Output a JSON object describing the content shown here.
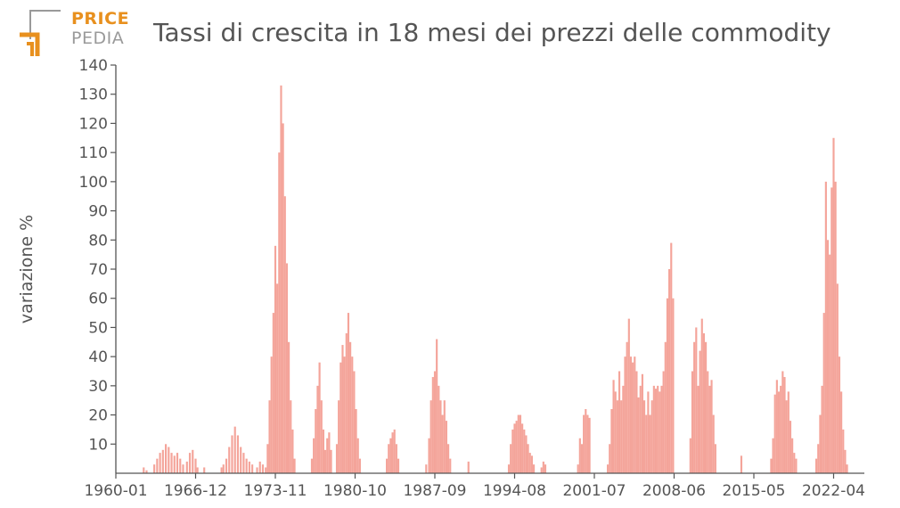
{
  "logo": {
    "word1": "PRICE",
    "word2": "PEDIA",
    "accent": "#e8901e",
    "gray": "#9a9a9a"
  },
  "chart_data": {
    "type": "bar",
    "title": "Tassi di crescita in 18 mesi dei prezzi delle commodity",
    "xlabel": "",
    "ylabel": "variazione %",
    "ylim": [
      0,
      140
    ],
    "yticks": [
      10,
      20,
      30,
      40,
      50,
      60,
      70,
      80,
      90,
      100,
      110,
      120,
      130,
      140
    ],
    "xlim": [
      "1960-01",
      "2024-12"
    ],
    "xticks": [
      "1960-01",
      "1966-12",
      "1973-11",
      "1980-10",
      "1987-09",
      "1994-08",
      "2001-07",
      "2008-06",
      "2015-05",
      "2022-04"
    ],
    "grid": false,
    "bar_color": "#f4a49a",
    "frequency": "monthly",
    "series": [
      {
        "values": [
          [
            "1962-06",
            2
          ],
          [
            "1962-09",
            1
          ],
          [
            "1963-05",
            3
          ],
          [
            "1963-08",
            5
          ],
          [
            "1963-11",
            7
          ],
          [
            "1964-02",
            8
          ],
          [
            "1964-05",
            10
          ],
          [
            "1964-08",
            9
          ],
          [
            "1964-11",
            7
          ],
          [
            "1965-02",
            6
          ],
          [
            "1965-05",
            7
          ],
          [
            "1965-08",
            5
          ],
          [
            "1965-11",
            3
          ],
          [
            "1966-03",
            4
          ],
          [
            "1966-06",
            7
          ],
          [
            "1966-09",
            8
          ],
          [
            "1966-12",
            5
          ],
          [
            "1967-02",
            2
          ],
          [
            "1967-09",
            2
          ],
          [
            "1969-03",
            2
          ],
          [
            "1969-05",
            3
          ],
          [
            "1969-08",
            5
          ],
          [
            "1969-11",
            9
          ],
          [
            "1970-02",
            13
          ],
          [
            "1970-05",
            16
          ],
          [
            "1970-08",
            13
          ],
          [
            "1970-11",
            9
          ],
          [
            "1971-02",
            7
          ],
          [
            "1971-05",
            5
          ],
          [
            "1971-08",
            4
          ],
          [
            "1971-11",
            3
          ],
          [
            "1972-04",
            2
          ],
          [
            "1972-07",
            4
          ],
          [
            "1972-10",
            3
          ],
          [
            "1973-01",
            2
          ],
          [
            "1973-03",
            10
          ],
          [
            "1973-05",
            25
          ],
          [
            "1973-07",
            40
          ],
          [
            "1973-09",
            55
          ],
          [
            "1973-11",
            78
          ],
          [
            "1974-01",
            65
          ],
          [
            "1974-03",
            110
          ],
          [
            "1974-05",
            133
          ],
          [
            "1974-07",
            120
          ],
          [
            "1974-09",
            95
          ],
          [
            "1974-11",
            72
          ],
          [
            "1975-01",
            45
          ],
          [
            "1975-03",
            25
          ],
          [
            "1975-05",
            15
          ],
          [
            "1975-07",
            5
          ],
          [
            "1977-01",
            5
          ],
          [
            "1977-03",
            12
          ],
          [
            "1977-05",
            22
          ],
          [
            "1977-07",
            30
          ],
          [
            "1977-09",
            38
          ],
          [
            "1977-11",
            25
          ],
          [
            "1978-01",
            15
          ],
          [
            "1978-03",
            8
          ],
          [
            "1978-05",
            12
          ],
          [
            "1978-07",
            14
          ],
          [
            "1978-09",
            8
          ],
          [
            "1979-03",
            10
          ],
          [
            "1979-05",
            25
          ],
          [
            "1979-07",
            38
          ],
          [
            "1979-09",
            44
          ],
          [
            "1979-11",
            40
          ],
          [
            "1980-01",
            48
          ],
          [
            "1980-03",
            55
          ],
          [
            "1980-05",
            45
          ],
          [
            "1980-07",
            40
          ],
          [
            "1980-09",
            35
          ],
          [
            "1980-11",
            22
          ],
          [
            "1981-01",
            12
          ],
          [
            "1981-03",
            5
          ],
          [
            "1983-07",
            5
          ],
          [
            "1983-09",
            10
          ],
          [
            "1983-11",
            12
          ],
          [
            "1984-01",
            14
          ],
          [
            "1984-03",
            15
          ],
          [
            "1984-05",
            10
          ],
          [
            "1984-07",
            5
          ],
          [
            "1986-12",
            3
          ],
          [
            "1987-03",
            12
          ],
          [
            "1987-05",
            25
          ],
          [
            "1987-07",
            33
          ],
          [
            "1987-09",
            35
          ],
          [
            "1987-11",
            46
          ],
          [
            "1988-01",
            30
          ],
          [
            "1988-03",
            25
          ],
          [
            "1988-05",
            20
          ],
          [
            "1988-07",
            25
          ],
          [
            "1988-09",
            18
          ],
          [
            "1988-11",
            10
          ],
          [
            "1989-01",
            5
          ],
          [
            "1990-08",
            4
          ],
          [
            "1994-02",
            3
          ],
          [
            "1994-04",
            10
          ],
          [
            "1994-06",
            15
          ],
          [
            "1994-08",
            17
          ],
          [
            "1994-10",
            18
          ],
          [
            "1994-12",
            20
          ],
          [
            "1995-02",
            20
          ],
          [
            "1995-04",
            17
          ],
          [
            "1995-06",
            15
          ],
          [
            "1995-08",
            13
          ],
          [
            "1995-10",
            10
          ],
          [
            "1995-12",
            7
          ],
          [
            "1996-02",
            6
          ],
          [
            "1996-04",
            3
          ],
          [
            "1996-12",
            2
          ],
          [
            "1997-02",
            4
          ],
          [
            "1997-04",
            3
          ],
          [
            "2000-02",
            3
          ],
          [
            "2000-04",
            12
          ],
          [
            "2000-06",
            10
          ],
          [
            "2000-08",
            20
          ],
          [
            "2000-10",
            22
          ],
          [
            "2000-12",
            20
          ],
          [
            "2001-02",
            19
          ],
          [
            "2002-09",
            3
          ],
          [
            "2002-11",
            10
          ],
          [
            "2003-01",
            22
          ],
          [
            "2003-03",
            32
          ],
          [
            "2003-05",
            28
          ],
          [
            "2003-07",
            25
          ],
          [
            "2003-09",
            35
          ],
          [
            "2003-11",
            25
          ],
          [
            "2004-01",
            30
          ],
          [
            "2004-03",
            40
          ],
          [
            "2004-05",
            45
          ],
          [
            "2004-07",
            53
          ],
          [
            "2004-09",
            40
          ],
          [
            "2004-11",
            38
          ],
          [
            "2005-01",
            40
          ],
          [
            "2005-03",
            35
          ],
          [
            "2005-05",
            26
          ],
          [
            "2005-07",
            30
          ],
          [
            "2005-09",
            34
          ],
          [
            "2005-11",
            25
          ],
          [
            "2006-01",
            20
          ],
          [
            "2006-03",
            28
          ],
          [
            "2006-05",
            20
          ],
          [
            "2006-07",
            25
          ],
          [
            "2006-09",
            30
          ],
          [
            "2006-11",
            29
          ],
          [
            "2007-01",
            30
          ],
          [
            "2007-03",
            28
          ],
          [
            "2007-05",
            30
          ],
          [
            "2007-07",
            35
          ],
          [
            "2007-09",
            45
          ],
          [
            "2007-11",
            60
          ],
          [
            "2008-01",
            70
          ],
          [
            "2008-03",
            79
          ],
          [
            "2008-05",
            60
          ],
          [
            "2009-11",
            12
          ],
          [
            "2010-01",
            35
          ],
          [
            "2010-03",
            45
          ],
          [
            "2010-05",
            50
          ],
          [
            "2010-07",
            30
          ],
          [
            "2010-09",
            42
          ],
          [
            "2010-11",
            53
          ],
          [
            "2011-01",
            48
          ],
          [
            "2011-03",
            45
          ],
          [
            "2011-05",
            35
          ],
          [
            "2011-07",
            30
          ],
          [
            "2011-09",
            32
          ],
          [
            "2011-11",
            20
          ],
          [
            "2012-01",
            10
          ],
          [
            "2014-04",
            6
          ],
          [
            "2016-11",
            5
          ],
          [
            "2017-01",
            12
          ],
          [
            "2017-03",
            27
          ],
          [
            "2017-05",
            32
          ],
          [
            "2017-07",
            28
          ],
          [
            "2017-09",
            30
          ],
          [
            "2017-11",
            35
          ],
          [
            "2018-01",
            33
          ],
          [
            "2018-03",
            25
          ],
          [
            "2018-05",
            28
          ],
          [
            "2018-07",
            18
          ],
          [
            "2018-09",
            12
          ],
          [
            "2018-11",
            7
          ],
          [
            "2019-01",
            5
          ],
          [
            "2020-10",
            5
          ],
          [
            "2020-12",
            10
          ],
          [
            "2021-02",
            20
          ],
          [
            "2021-04",
            30
          ],
          [
            "2021-06",
            55
          ],
          [
            "2021-08",
            100
          ],
          [
            "2021-10",
            80
          ],
          [
            "2021-12",
            75
          ],
          [
            "2022-02",
            98
          ],
          [
            "2022-04",
            115
          ],
          [
            "2022-06",
            100
          ],
          [
            "2022-08",
            65
          ],
          [
            "2022-10",
            40
          ],
          [
            "2022-12",
            28
          ],
          [
            "2023-02",
            15
          ],
          [
            "2023-04",
            8
          ],
          [
            "2023-06",
            3
          ]
        ]
      }
    ]
  }
}
